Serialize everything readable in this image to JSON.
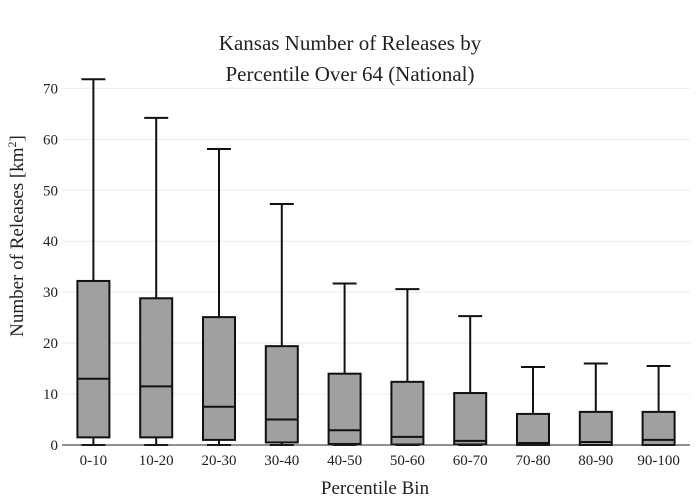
{
  "chart_data": {
    "type": "box",
    "title_lines": [
      "Kansas Number of Releases by",
      "Percentile Over 64 (National)"
    ],
    "xlabel": "Percentile Bin",
    "ylabel": {
      "main": "Number of Releases  [km",
      "sup": "2",
      "end": "]"
    },
    "ylim": [
      0,
      74
    ],
    "yticks": [
      0,
      10,
      20,
      30,
      40,
      50,
      60,
      70
    ],
    "ytick_labels": [
      "0",
      "10",
      "20",
      "30",
      "40",
      "50",
      "60",
      "70"
    ],
    "grid": true,
    "categories": [
      "0-10",
      "10-20",
      "20-30",
      "30-40",
      "40-50",
      "50-60",
      "60-70",
      "70-80",
      "80-90",
      "90-100"
    ],
    "boxes": [
      {
        "min": 0,
        "q1": 1.5,
        "median": 13.0,
        "q3": 32.2,
        "max": 71.8
      },
      {
        "min": 0,
        "q1": 1.5,
        "median": 11.5,
        "q3": 28.8,
        "max": 64.2
      },
      {
        "min": 0,
        "q1": 1.0,
        "median": 7.5,
        "q3": 25.1,
        "max": 58.1
      },
      {
        "min": 0,
        "q1": 0.5,
        "median": 5.0,
        "q3": 19.4,
        "max": 47.3
      },
      {
        "min": 0,
        "q1": 0.2,
        "median": 2.9,
        "q3": 14.0,
        "max": 31.7
      },
      {
        "min": 0,
        "q1": 0.1,
        "median": 1.6,
        "q3": 12.4,
        "max": 30.6
      },
      {
        "min": 0,
        "q1": 0.1,
        "median": 0.8,
        "q3": 10.2,
        "max": 25.3
      },
      {
        "min": 0,
        "q1": 0.0,
        "median": 0.4,
        "q3": 6.1,
        "max": 15.3
      },
      {
        "min": 0,
        "q1": 0.0,
        "median": 0.6,
        "q3": 6.5,
        "max": 16.0
      },
      {
        "min": 0,
        "q1": 0.0,
        "median": 1.0,
        "q3": 6.5,
        "max": 15.5
      }
    ],
    "box_fill": "#a0a0a0",
    "line_color": "#111111"
  }
}
